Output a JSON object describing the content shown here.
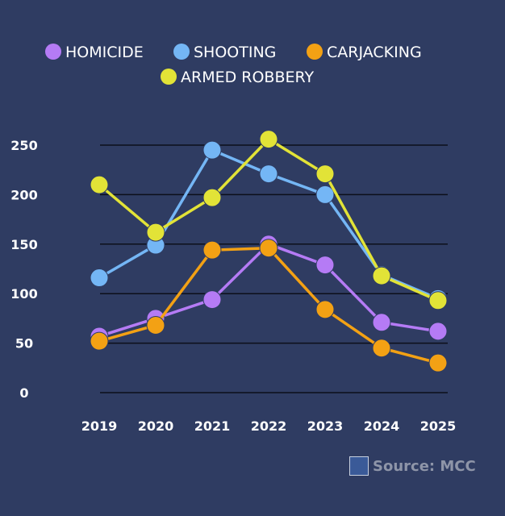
{
  "chart_data": {
    "type": "line",
    "categories": [
      "2019",
      "2020",
      "2021",
      "2022",
      "2023",
      "2024",
      "2025"
    ],
    "series": [
      {
        "name": "HOMICIDE",
        "color": "#b57bf5",
        "values": [
          57,
          75,
          94,
          150,
          129,
          71,
          62
        ]
      },
      {
        "name": "SHOOTING",
        "color": "#74b6f5",
        "values": [
          116,
          149,
          245,
          221,
          200,
          119,
          95
        ]
      },
      {
        "name": "CARJACKING",
        "color": "#f3a114",
        "values": [
          52,
          68,
          144,
          146,
          84,
          45,
          30
        ]
      },
      {
        "name": "ARMED ROBBERY",
        "color": "#e2e337",
        "values": [
          210,
          162,
          197,
          256,
          221,
          118,
          93
        ]
      }
    ],
    "yticks": [
      0,
      50,
      100,
      150,
      200,
      250
    ],
    "ylim": [
      0,
      250
    ],
    "grid": true,
    "legend": "top-center",
    "background": "#2f3c62"
  },
  "source": {
    "label": "Source: MCC",
    "logo_text": "MCC"
  }
}
